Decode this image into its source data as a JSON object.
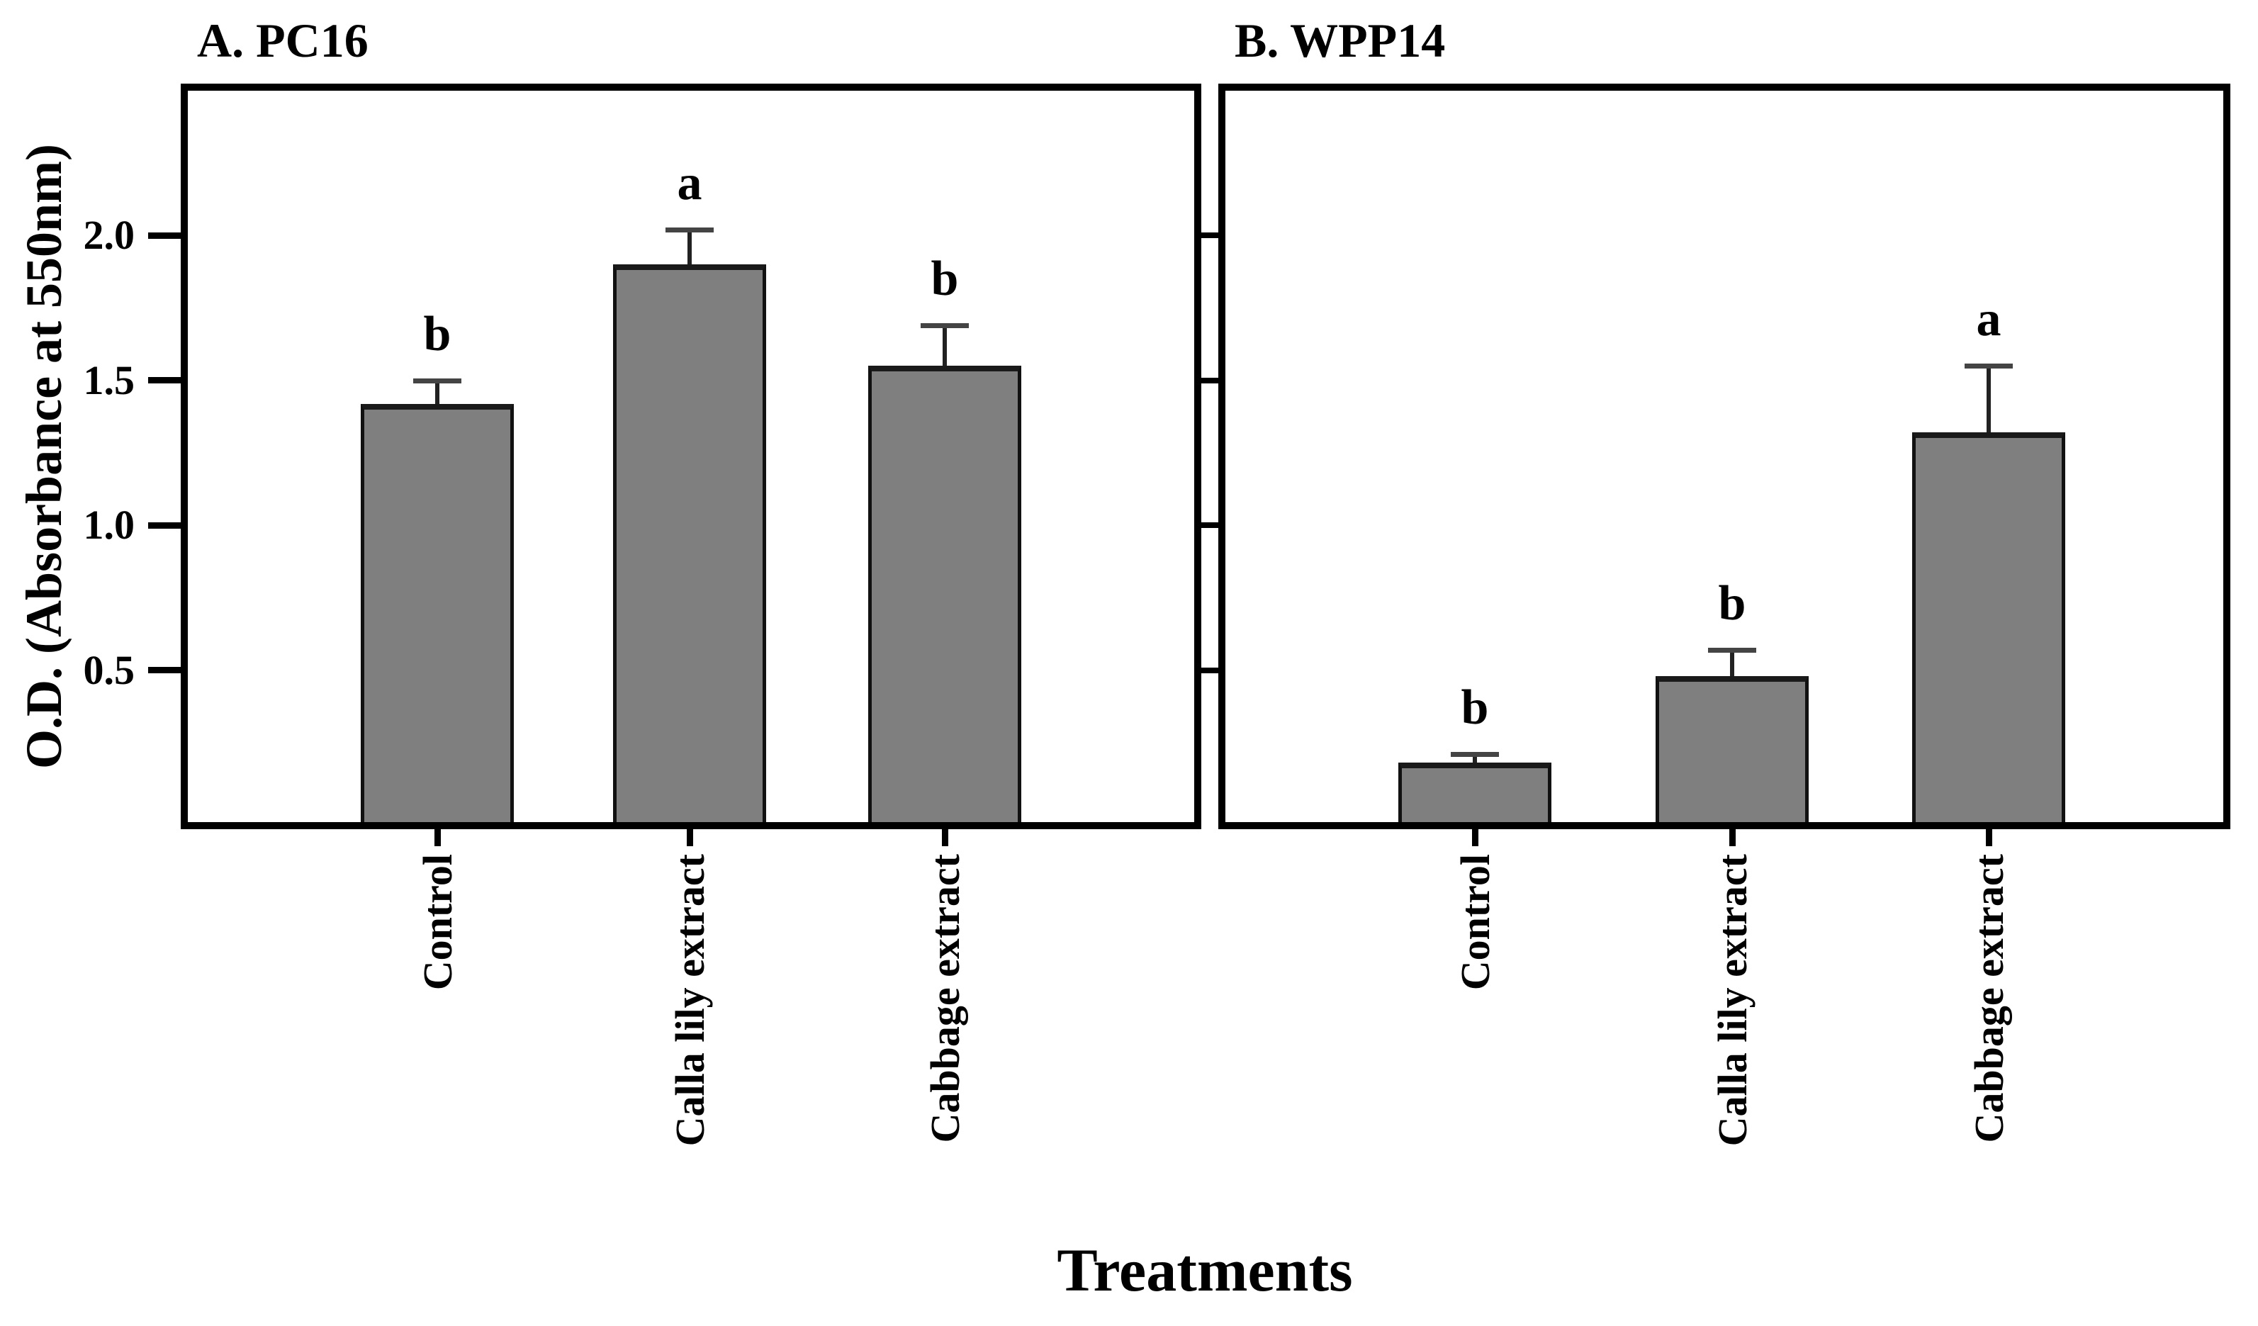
{
  "figure": {
    "panel_a_title": "A. PC16",
    "panel_b_title": "B. WPP14"
  },
  "chart_data": {
    "type": "bar",
    "categories": [
      "Control",
      "Calla lily extract",
      "Cabbage extract"
    ],
    "xlabel": "Treatments",
    "ylabel": "O.D. (Absorbance at 550nm)",
    "ylim": [
      0,
      2.5
    ],
    "yticks": [
      0.5,
      1.0,
      1.5,
      2.0
    ],
    "ytick_labels": [
      "0.5",
      "1.0",
      "1.5",
      "2.0"
    ],
    "grid": false,
    "legend": "none",
    "bar_color": "#7f7f7f",
    "panels": [
      {
        "title": "A. PC16",
        "series_name": "PC16",
        "values": [
          1.42,
          1.9,
          1.55
        ],
        "errors_up": [
          0.08,
          0.12,
          0.14
        ],
        "sig_letters": [
          "b",
          "a",
          "b"
        ]
      },
      {
        "title": "B. WPP14",
        "series_name": "WPP14",
        "values": [
          0.18,
          0.48,
          1.32
        ],
        "errors_up": [
          0.03,
          0.09,
          0.23
        ],
        "sig_letters": [
          "b",
          "b",
          "a"
        ]
      }
    ]
  }
}
